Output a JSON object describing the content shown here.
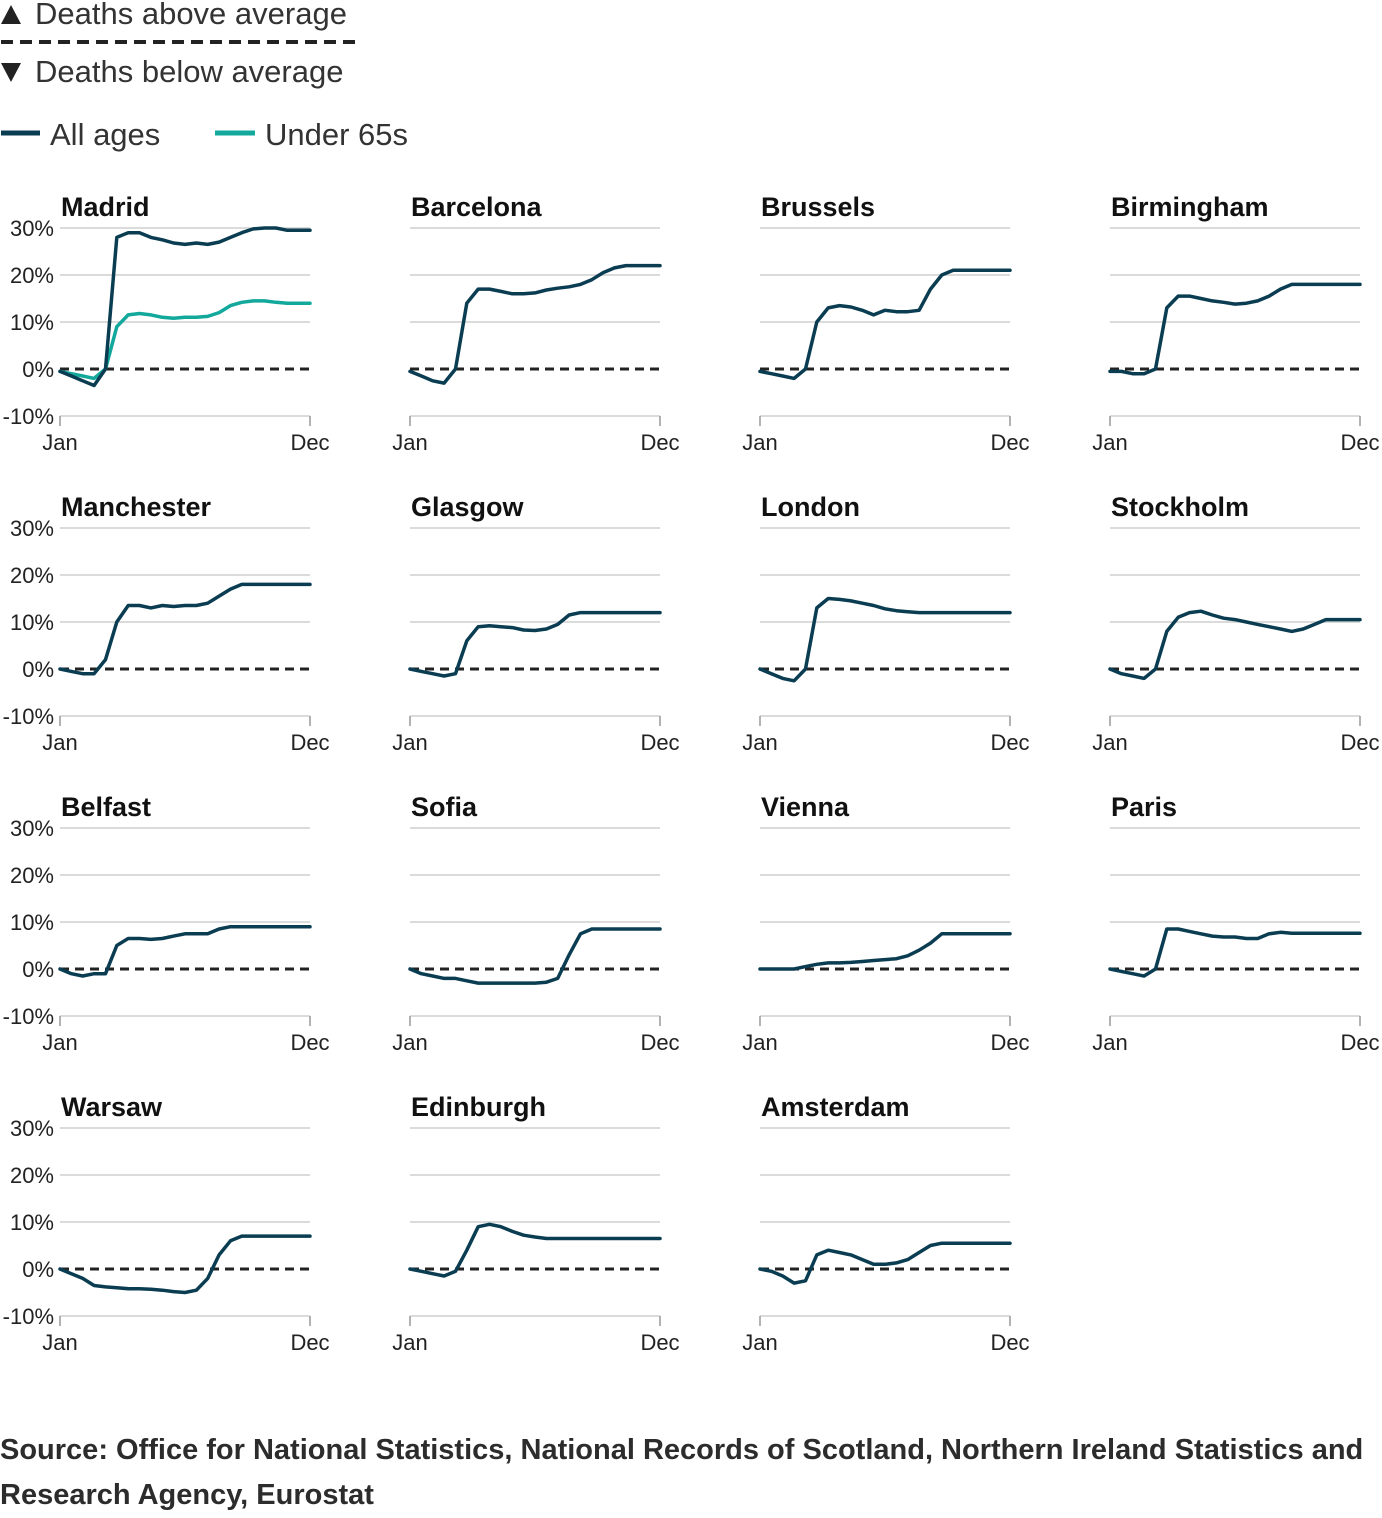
{
  "legend": {
    "above_label": "Deaths above average",
    "below_label": "Deaths below average",
    "above_marker": "up-triangle",
    "below_marker": "down-triangle",
    "all_ages_label": "All ages",
    "under65_label": "Under 65s"
  },
  "colors": {
    "all_ages": "#0b3d52",
    "under65": "#12a89c",
    "baseline": "#222222",
    "grid": "#cfcfcf"
  },
  "source": "Source: Office for National Statistics, National Records of Scotland, Northern Ireland Statistics and Research Agency, Eurostat",
  "chart_data": {
    "type": "line",
    "layout": "small-multiples",
    "x_range": [
      "Jan",
      "Dec"
    ],
    "x_tick_labels": [
      "Jan",
      "Dec"
    ],
    "y_ticks": [
      30,
      20,
      10,
      0,
      -10
    ],
    "y_tick_labels": [
      "30%",
      "20%",
      "10%",
      "0%",
      "-10%"
    ],
    "ylim": [
      -10,
      30
    ],
    "x_unit": "month",
    "x": [
      1,
      1.5,
      2,
      2.5,
      3,
      3.5,
      4,
      4.5,
      5,
      5.5,
      6,
      6.5,
      7,
      7.5,
      8,
      8.5,
      9,
      9.5,
      10,
      10.5,
      11,
      11.5,
      12
    ],
    "baseline": 0,
    "panels": [
      {
        "city": "Madrid",
        "all_ages": [
          -0.5,
          -1.5,
          -2.5,
          -3.5,
          0,
          28,
          29,
          29,
          28,
          27.5,
          26.8,
          26.5,
          26.8,
          26.5,
          27,
          28,
          29,
          29.8,
          30,
          30,
          29.5,
          29.5,
          29.5
        ],
        "under65": [
          -0.5,
          -1,
          -1.5,
          -2,
          0,
          9,
          11.5,
          11.8,
          11.5,
          11,
          10.8,
          11,
          11,
          11.2,
          12,
          13.5,
          14.2,
          14.5,
          14.5,
          14.2,
          14,
          14,
          14
        ]
      },
      {
        "city": "Barcelona",
        "all_ages": [
          -0.5,
          -1.5,
          -2.5,
          -3,
          0,
          14,
          17,
          17,
          16.5,
          16,
          16,
          16.2,
          16.8,
          17.2,
          17.5,
          18,
          19,
          20.5,
          21.5,
          22,
          22,
          22,
          22
        ]
      },
      {
        "city": "Brussels",
        "all_ages": [
          -0.5,
          -1,
          -1.5,
          -2,
          0,
          10,
          13,
          13.5,
          13.2,
          12.5,
          11.5,
          12.5,
          12.2,
          12.2,
          12.5,
          17,
          20,
          21,
          21,
          21,
          21,
          21,
          21
        ]
      },
      {
        "city": "Birmingham",
        "all_ages": [
          -0.5,
          -0.5,
          -1,
          -1,
          0,
          13,
          15.5,
          15.5,
          15,
          14.5,
          14.2,
          13.8,
          14,
          14.5,
          15.5,
          17,
          18,
          18,
          18,
          18,
          18,
          18,
          18
        ]
      },
      {
        "city": "Manchester",
        "all_ages": [
          0,
          -0.5,
          -1,
          -1,
          2,
          10,
          13.5,
          13.5,
          13,
          13.5,
          13.3,
          13.5,
          13.5,
          14,
          15.5,
          17,
          18,
          18,
          18,
          18,
          18,
          18,
          18
        ]
      },
      {
        "city": "Glasgow",
        "all_ages": [
          0,
          -0.5,
          -1,
          -1.5,
          -1,
          6,
          9,
          9.2,
          9,
          8.8,
          8.3,
          8.2,
          8.5,
          9.5,
          11.5,
          12,
          12,
          12,
          12,
          12,
          12,
          12,
          12
        ]
      },
      {
        "city": "London",
        "all_ages": [
          0,
          -1,
          -2,
          -2.5,
          0,
          13,
          15,
          14.8,
          14.5,
          14,
          13.5,
          12.8,
          12.4,
          12.2,
          12,
          12,
          12,
          12,
          12,
          12,
          12,
          12,
          12
        ]
      },
      {
        "city": "Stockholm",
        "all_ages": [
          0,
          -1,
          -1.5,
          -2,
          0,
          8,
          11,
          12,
          12.3,
          11.5,
          10.8,
          10.5,
          10,
          9.5,
          9,
          8.5,
          8,
          8.5,
          9.5,
          10.5,
          10.5,
          10.5,
          10.5
        ]
      },
      {
        "city": "Belfast",
        "all_ages": [
          0,
          -1,
          -1.5,
          -1,
          -1,
          5,
          6.5,
          6.5,
          6.3,
          6.5,
          7,
          7.5,
          7.5,
          7.5,
          8.5,
          9,
          9,
          9,
          9,
          9,
          9,
          9,
          9
        ]
      },
      {
        "city": "Sofia",
        "all_ages": [
          0,
          -1,
          -1.5,
          -2,
          -2,
          -2.5,
          -3,
          -3,
          -3,
          -3,
          -3,
          -3,
          -2.8,
          -2,
          3,
          7.5,
          8.5,
          8.5,
          8.5,
          8.5,
          8.5,
          8.5,
          8.5
        ]
      },
      {
        "city": "Vienna",
        "all_ages": [
          0,
          0,
          0,
          0,
          0.5,
          1,
          1.3,
          1.3,
          1.4,
          1.6,
          1.8,
          2,
          2.2,
          2.8,
          4,
          5.5,
          7.5,
          7.5,
          7.5,
          7.5,
          7.5,
          7.5,
          7.5
        ]
      },
      {
        "city": "Paris",
        "all_ages": [
          0,
          -0.5,
          -1,
          -1.5,
          0,
          8.5,
          8.5,
          8,
          7.5,
          7,
          6.8,
          6.8,
          6.5,
          6.5,
          7.5,
          7.8,
          7.6,
          7.6,
          7.6,
          7.6,
          7.6,
          7.6,
          7.6
        ]
      },
      {
        "city": "Warsaw",
        "all_ages": [
          0,
          -1,
          -2,
          -3.5,
          -3.8,
          -4,
          -4.2,
          -4.2,
          -4.3,
          -4.5,
          -4.8,
          -5,
          -4.5,
          -2,
          3,
          6,
          7,
          7,
          7,
          7,
          7,
          7,
          7
        ]
      },
      {
        "city": "Edinburgh",
        "all_ages": [
          0,
          -0.5,
          -1,
          -1.5,
          -0.5,
          4,
          9,
          9.5,
          9,
          8,
          7.2,
          6.8,
          6.5,
          6.5,
          6.5,
          6.5,
          6.5,
          6.5,
          6.5,
          6.5,
          6.5,
          6.5,
          6.5
        ]
      },
      {
        "city": "Amsterdam",
        "all_ages": [
          0,
          -0.5,
          -1.5,
          -3,
          -2.5,
          3,
          4,
          3.5,
          3,
          2,
          1,
          1,
          1.3,
          2,
          3.5,
          5,
          5.5,
          5.5,
          5.5,
          5.5,
          5.5,
          5.5,
          5.5
        ]
      }
    ]
  }
}
